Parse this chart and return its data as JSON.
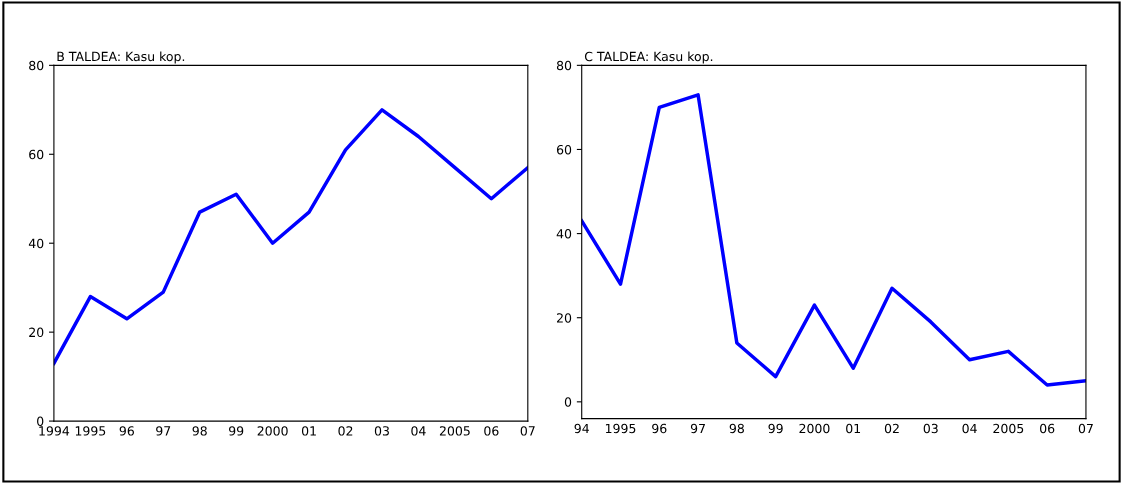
{
  "chart_data": [
    {
      "type": "line",
      "title": "B TALDEA: Kasu kop.",
      "categories": [
        "1994",
        "1995",
        "96",
        "97",
        "98",
        "99",
        "2000",
        "01",
        "02",
        "03",
        "04",
        "2005",
        "06",
        "07"
      ],
      "series": [
        {
          "color": "#0000ff",
          "values": [
            13,
            28,
            23,
            29,
            47,
            51,
            40,
            47,
            61,
            70,
            64,
            57,
            50,
            57
          ]
        }
      ],
      "ylim": [
        0,
        80
      ],
      "yticks": [
        0,
        20,
        40,
        60,
        80
      ],
      "grid": false,
      "marker": "none",
      "line_style": "solid"
    },
    {
      "type": "line",
      "title": "C TALDEA: Kasu kop.",
      "categories": [
        "94",
        "1995",
        "96",
        "97",
        "98",
        "99",
        "2000",
        "01",
        "02",
        "03",
        "04",
        "2005",
        "06",
        "07"
      ],
      "series": [
        {
          "color": "#0000ff",
          "values": [
            43,
            28,
            70,
            73,
            14,
            6,
            23,
            8,
            27,
            19,
            10,
            12,
            4,
            5
          ]
        }
      ],
      "ylim": [
        -4,
        80
      ],
      "yticks": [
        0,
        20,
        40,
        60,
        80
      ],
      "grid": false,
      "marker": "none",
      "line_style": "solid"
    }
  ]
}
